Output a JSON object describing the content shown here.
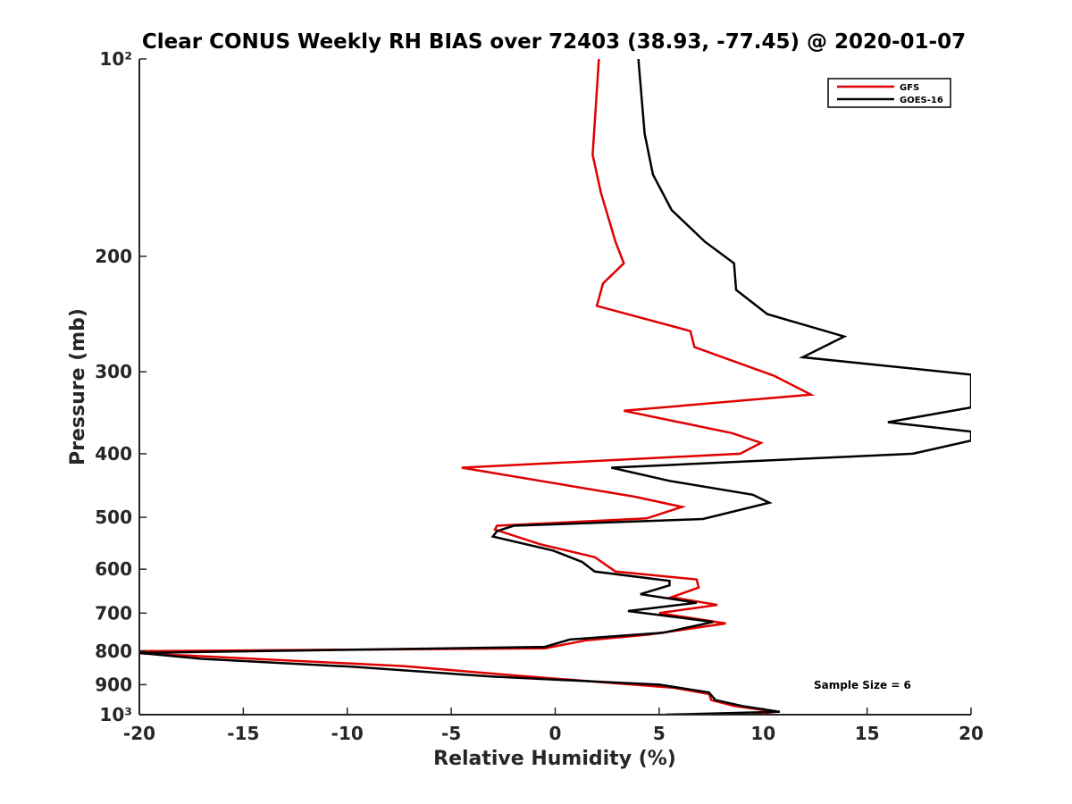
{
  "chart_data": {
    "type": "line",
    "title": "Clear CONUS Weekly RH BIAS over 72403 (38.93, -77.45) @ 2020-01-07",
    "xlabel": "Relative Humidity (%)",
    "ylabel": "Pressure (mb)",
    "xlim": [
      -20,
      20
    ],
    "ylim": [
      100,
      1000
    ],
    "y_scale": "log",
    "y_reversed": true,
    "grid": false,
    "legend_position": "top-right",
    "x_ticks": [
      -20,
      -15,
      -10,
      -5,
      0,
      5,
      10,
      15,
      20
    ],
    "x_tick_labels": [
      "-20",
      "-15",
      "-10",
      "-5",
      "0",
      "5",
      "10",
      "15",
      "20"
    ],
    "y_ticks": [
      100,
      200,
      300,
      400,
      500,
      600,
      700,
      800,
      900,
      1000
    ],
    "y_tick_labels": [
      "10²",
      "200",
      "300",
      "400",
      "500",
      "600",
      "700",
      "800",
      "900",
      "10³"
    ],
    "annotations": [
      "Sample Size = 6"
    ],
    "series": [
      {
        "name": "GFS",
        "color": "#e00000",
        "points": [
          [
            2.1,
            100
          ],
          [
            1.8,
            140
          ],
          [
            2.2,
            160
          ],
          [
            2.9,
            190
          ],
          [
            3.3,
            205
          ],
          [
            2.3,
            220
          ],
          [
            2.0,
            238
          ],
          [
            6.5,
            260
          ],
          [
            6.7,
            275
          ],
          [
            10.5,
            304
          ],
          [
            12.3,
            325
          ],
          [
            3.3,
            344
          ],
          [
            8.5,
            372
          ],
          [
            9.9,
            385
          ],
          [
            8.9,
            400
          ],
          [
            -4.5,
            420
          ],
          [
            3.8,
            465
          ],
          [
            6.1,
            482
          ],
          [
            4.4,
            502
          ],
          [
            -2.8,
            515
          ],
          [
            -2.9,
            522
          ],
          [
            -0.7,
            550
          ],
          [
            1.9,
            575
          ],
          [
            2.9,
            605
          ],
          [
            6.8,
            622
          ],
          [
            6.9,
            640
          ],
          [
            5.6,
            662
          ],
          [
            7.8,
            680
          ],
          [
            5.0,
            700
          ],
          [
            8.2,
            726
          ],
          [
            4.5,
            755
          ],
          [
            1.5,
            770
          ],
          [
            -0.5,
            792
          ],
          [
            -20,
            800
          ],
          [
            -20,
            806
          ],
          [
            -7.3,
            843
          ],
          [
            -2.2,
            870
          ],
          [
            5.7,
            910
          ],
          [
            7.4,
            930
          ],
          [
            7.5,
            950
          ],
          [
            8.6,
            970
          ],
          [
            10.6,
            990
          ],
          [
            9.5,
            1000
          ]
        ]
      },
      {
        "name": "GOES-16",
        "color": "#000000",
        "points": [
          [
            4.0,
            100
          ],
          [
            4.3,
            130
          ],
          [
            4.7,
            150
          ],
          [
            5.6,
            170
          ],
          [
            7.2,
            190
          ],
          [
            8.6,
            205
          ],
          [
            8.7,
            225
          ],
          [
            10.2,
            245
          ],
          [
            13.9,
            265
          ],
          [
            11.9,
            285
          ],
          [
            20,
            303
          ],
          [
            20,
            340
          ],
          [
            16.0,
            358
          ],
          [
            20,
            370
          ],
          [
            20,
            382
          ],
          [
            17.2,
            400
          ],
          [
            2.7,
            420
          ],
          [
            5.5,
            440
          ],
          [
            9.5,
            462
          ],
          [
            10.3,
            475
          ],
          [
            7.1,
            503
          ],
          [
            -2.0,
            515
          ],
          [
            -2.8,
            525
          ],
          [
            -3.0,
            535
          ],
          [
            -0.1,
            562
          ],
          [
            1.3,
            585
          ],
          [
            1.9,
            605
          ],
          [
            5.5,
            625
          ],
          [
            5.5,
            635
          ],
          [
            4.1,
            655
          ],
          [
            6.8,
            675
          ],
          [
            3.5,
            695
          ],
          [
            7.6,
            722
          ],
          [
            5.2,
            750
          ],
          [
            0.7,
            768
          ],
          [
            -0.5,
            788
          ],
          [
            -20,
            805
          ],
          [
            -17.0,
            822
          ],
          [
            -9.8,
            845
          ],
          [
            -3.0,
            875
          ],
          [
            5.0,
            900
          ],
          [
            7.4,
            925
          ],
          [
            7.7,
            950
          ],
          [
            9.0,
            970
          ],
          [
            10.8,
            990
          ],
          [
            5.3,
            1000
          ]
        ]
      }
    ]
  }
}
